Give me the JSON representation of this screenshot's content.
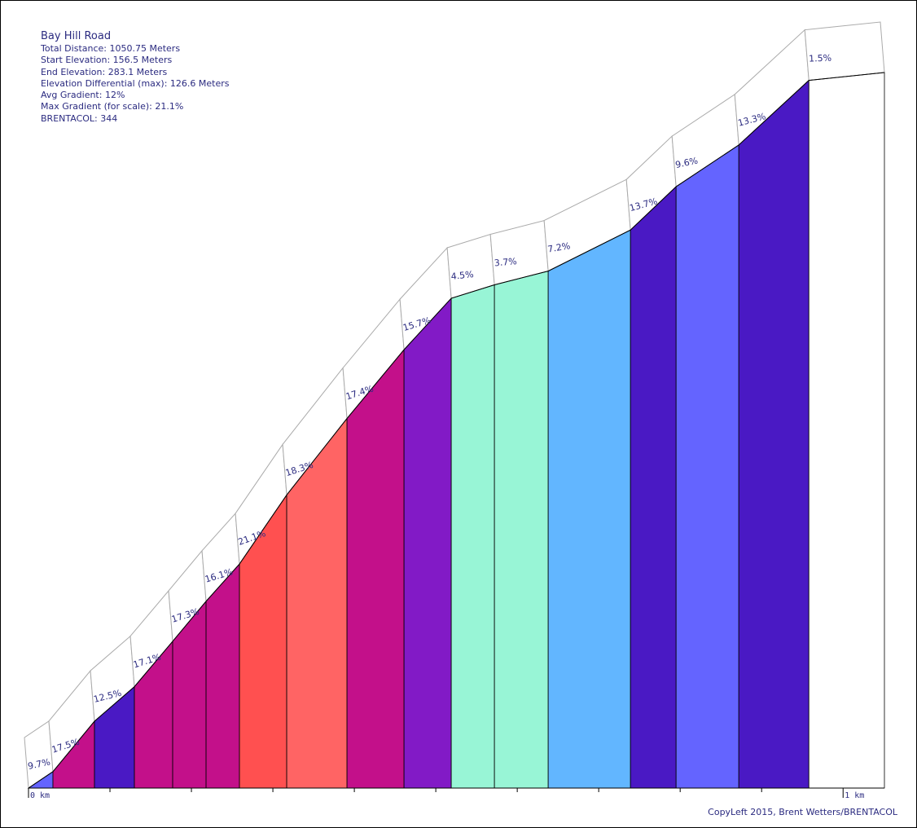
{
  "stats": {
    "title": "Bay Hill Road",
    "total_distance": "Total Distance: 1050.75 Meters",
    "start_elevation": "Start Elevation: 156.5 Meters",
    "end_elevation": "End Elevation: 283.1 Meters",
    "elevation_differential": "Elevation Differential (max): 126.6 Meters",
    "avg_gradient": "Avg Gradient: 12%",
    "max_gradient": "Max Gradient (for scale): 21.1%",
    "brentacol": "BRENTACOL: 344"
  },
  "copyright": "CopyLeft 2015, Brent Wetters/BRENTACOL",
  "chart_data": {
    "type": "area",
    "title": "Bay Hill Road",
    "xlabel": "",
    "ylabel": "",
    "x_unit": "m",
    "y_unit": "m",
    "xlim": [
      0,
      1050.75
    ],
    "ylim": [
      156.5,
      283.1
    ],
    "x_tick_labels": [
      {
        "value": 0,
        "label": "0 km"
      },
      {
        "value": 1000,
        "label": "1 km"
      }
    ],
    "x_minor_ticks": [
      100,
      200,
      300,
      400,
      500,
      600,
      700,
      800,
      900
    ],
    "segments": [
      {
        "x0": 0,
        "x1": 30,
        "gradient": 9.7,
        "label": "9.7%",
        "color": "#6464ff"
      },
      {
        "x0": 30,
        "x1": 81,
        "gradient": 17.5,
        "label": "17.5%",
        "color": "#c3108a"
      },
      {
        "x0": 81,
        "x1": 130,
        "gradient": 12.5,
        "label": "12.5%",
        "color": "#4a19c4"
      },
      {
        "x0": 130,
        "x1": 177,
        "gradient": 17.1,
        "label": "17.1%",
        "color": "#c3108a"
      },
      {
        "x0": 177,
        "x1": 218,
        "gradient": 17.3,
        "label": "17.3%",
        "color": "#c3108a"
      },
      {
        "x0": 218,
        "x1": 259,
        "gradient": 16.1,
        "label": "16.1%",
        "color": "#c3108a"
      },
      {
        "x0": 259,
        "x1": 317,
        "gradient": 21.1,
        "label": "21.1%",
        "color": "#ff5050"
      },
      {
        "x0": 317,
        "x1": 391,
        "gradient": 18.3,
        "label": "18.3%",
        "color": "#ff6464"
      },
      {
        "x0": 391,
        "x1": 461,
        "gradient": 17.4,
        "label": "17.4%",
        "color": "#c3108a"
      },
      {
        "x0": 461,
        "x1": 519,
        "gradient": 15.7,
        "label": "15.7%",
        "color": "#821ac6"
      },
      {
        "x0": 519,
        "x1": 572,
        "gradient": 4.5,
        "label": "4.5%",
        "color": "#98f5d6"
      },
      {
        "x0": 572,
        "x1": 638,
        "gradient": 3.7,
        "label": "3.7%",
        "color": "#98f5d6"
      },
      {
        "x0": 638,
        "x1": 739,
        "gradient": 7.2,
        "label": "7.2%",
        "color": "#62b6ff"
      },
      {
        "x0": 739,
        "x1": 795,
        "gradient": 13.7,
        "label": "13.7%",
        "color": "#4a19c4"
      },
      {
        "x0": 795,
        "x1": 872,
        "gradient": 9.6,
        "label": "9.6%",
        "color": "#6464ff"
      },
      {
        "x0": 872,
        "x1": 958,
        "gradient": 13.3,
        "label": "13.3%",
        "color": "#4a19c4"
      },
      {
        "x0": 958,
        "x1": 1050.75,
        "gradient": 1.5,
        "label": "1.5%",
        "color": "#ffffff"
      }
    ]
  }
}
